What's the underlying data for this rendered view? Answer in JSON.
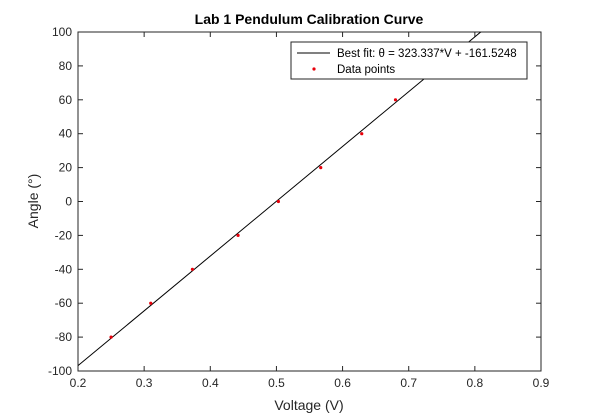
{
  "chart_data": {
    "type": "scatter",
    "title": "Lab 1 Pendulum Calibration Curve",
    "xlabel": "Voltage (V)",
    "ylabel": "Angle (°)",
    "xlim": [
      0.2,
      0.9
    ],
    "ylim": [
      -100,
      100
    ],
    "xticks": [
      0.2,
      0.3,
      0.4,
      0.5,
      0.6,
      0.7,
      0.8,
      0.9
    ],
    "xtick_labels": [
      "0.2",
      "0.3",
      "0.4",
      "0.5",
      "0.6",
      "0.7",
      "0.8",
      "0.9"
    ],
    "yticks": [
      -100,
      -80,
      -60,
      -40,
      -20,
      0,
      20,
      40,
      60,
      80,
      100
    ],
    "ytick_labels": [
      "-100",
      "-80",
      "-60",
      "-40",
      "-20",
      "0",
      "20",
      "40",
      "60",
      "80",
      "100"
    ],
    "grid": false,
    "legend_position": "top-right",
    "series": [
      {
        "name": "Best fit: θ = 323.337*V + -161.5248",
        "kind": "line",
        "slope": 323.337,
        "intercept": -161.5248,
        "color": "#000000"
      },
      {
        "name": "Data points",
        "kind": "scatter",
        "color": "#e8000b",
        "x": [
          0.25,
          0.31,
          0.373,
          0.442,
          0.503,
          0.567,
          0.629,
          0.68
        ],
        "y": [
          -80,
          -60,
          -40,
          -20,
          0,
          20,
          40,
          60
        ]
      }
    ]
  }
}
